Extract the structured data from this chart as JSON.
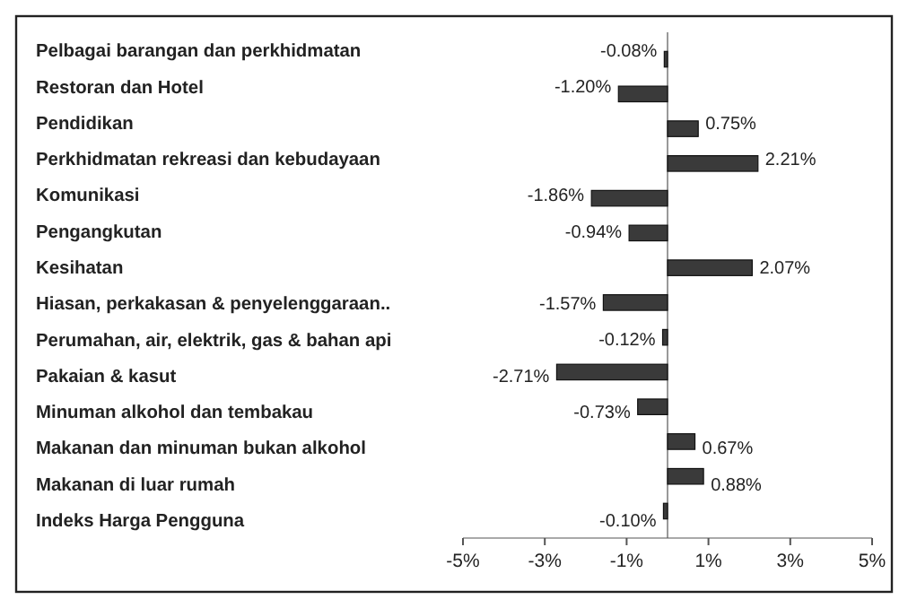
{
  "chart_data": {
    "type": "bar",
    "orientation": "horizontal",
    "categories": [
      "Pelbagai barangan dan perkhidmatan",
      "Restoran dan Hotel",
      "Pendidikan",
      "Perkhidmatan rekreasi dan kebudayaan",
      "Komunikasi",
      "Pengangkutan",
      "Kesihatan",
      "Hiasan, perkakasan & penyelenggaraan..",
      "Perumahan, air, elektrik, gas & bahan api",
      "Pakaian & kasut",
      "Minuman alkohol dan tembakau",
      "Makanan dan minuman bukan alkohol",
      "Makanan di luar rumah",
      "Indeks Harga Pengguna"
    ],
    "values": [
      -0.08,
      -1.2,
      0.75,
      2.21,
      -1.86,
      -0.94,
      2.07,
      -1.57,
      -0.12,
      -2.71,
      -0.73,
      0.67,
      0.88,
      -0.1
    ],
    "value_labels": [
      "-0.08%",
      "-1.20%",
      "0.75%",
      "2.21%",
      "-1.86%",
      "-0.94%",
      "2.07%",
      "-1.57%",
      "-0.12%",
      "-2.71%",
      "-0.73%",
      "0.67%",
      "0.88%",
      "-0.10%"
    ],
    "color": "#3a3a3a",
    "xlim": [
      -5,
      5
    ],
    "xticks": [
      {
        "value": -5,
        "label": "-5%"
      },
      {
        "value": -3,
        "label": "-3%"
      },
      {
        "value": -1,
        "label": "-1%"
      },
      {
        "value": 1,
        "label": "1%"
      },
      {
        "value": 3,
        "label": "3%"
      },
      {
        "value": 5,
        "label": "5%"
      }
    ],
    "grid": false
  }
}
